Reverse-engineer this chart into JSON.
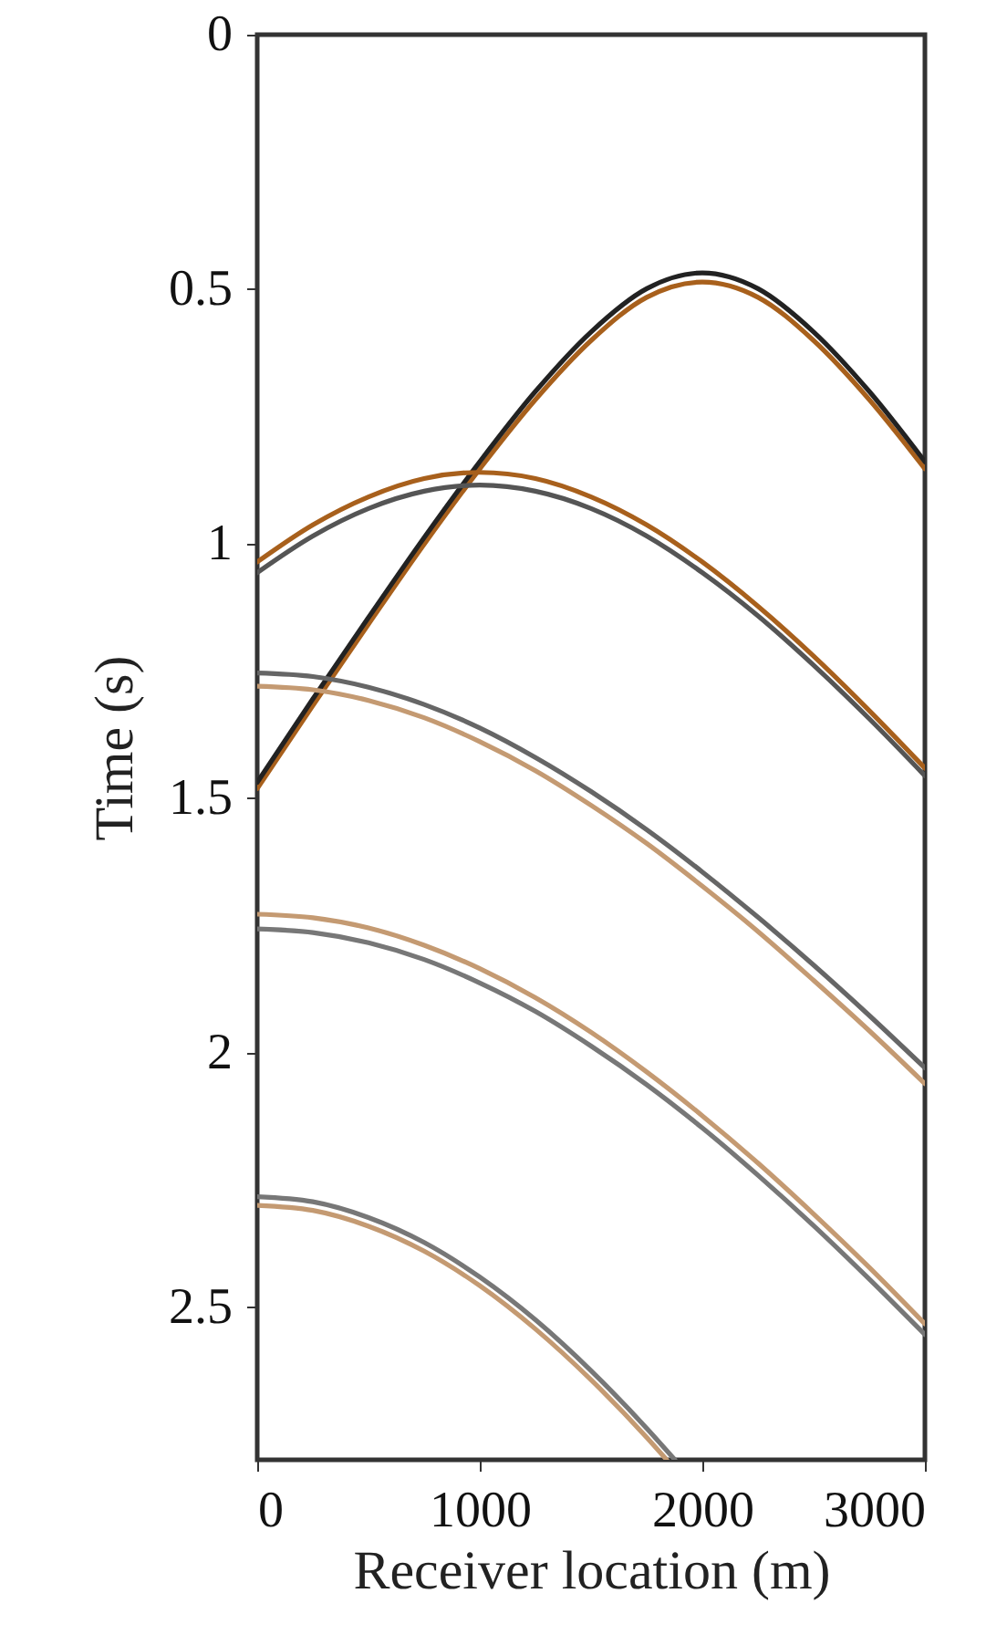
{
  "chart_data": {
    "type": "line",
    "xlabel": "Receiver location (m)",
    "ylabel": "Time (s)",
    "xlim": [
      0,
      3000
    ],
    "ylim": [
      2.8,
      0
    ],
    "xticks": [
      0,
      1000,
      2000,
      3000
    ],
    "yticks": [
      0,
      0.5,
      1,
      1.5,
      2,
      2.5
    ],
    "line_style": "solid",
    "series": [
      {
        "color": "#a8601c",
        "x": [
          0,
          250,
          500,
          750,
          1000,
          1250,
          1500,
          1750,
          2000,
          2250,
          2500,
          2750,
          3000
        ],
        "values": [
          1.481,
          1.318,
          1.158,
          1.001,
          0.853,
          0.717,
          0.601,
          0.516,
          0.486,
          0.516,
          0.601,
          0.717,
          0.853
        ]
      },
      {
        "color": "#222222",
        "x": [
          0,
          250,
          500,
          750,
          1000,
          1250,
          1500,
          1750,
          2000,
          2250,
          2500,
          2750,
          3000
        ],
        "values": [
          1.469,
          1.305,
          1.145,
          0.988,
          0.839,
          0.701,
          0.584,
          0.499,
          0.468,
          0.499,
          0.584,
          0.701,
          0.839
        ]
      },
      {
        "color": "#a8601c",
        "x": [
          0,
          250,
          500,
          750,
          1000,
          1250,
          1500,
          1750,
          2000,
          2250,
          2500,
          2750,
          3000
        ],
        "values": [
          1.036,
          0.963,
          0.908,
          0.872,
          0.86,
          0.872,
          0.908,
          0.963,
          1.036,
          1.123,
          1.221,
          1.328,
          1.441
        ]
      },
      {
        "color": "#555555",
        "x": [
          0,
          250,
          500,
          750,
          1000,
          1250,
          1500,
          1750,
          2000,
          2250,
          2500,
          2750,
          3000
        ],
        "values": [
          1.057,
          0.985,
          0.931,
          0.897,
          0.885,
          0.897,
          0.931,
          0.985,
          1.057,
          1.142,
          1.239,
          1.344,
          1.456
        ]
      },
      {
        "color": "#c49a72",
        "x": [
          0,
          250,
          500,
          750,
          1000,
          1250,
          1500,
          1750,
          2000,
          2250,
          2500,
          2750,
          3000
        ],
        "values": [
          1.28,
          1.287,
          1.308,
          1.342,
          1.389,
          1.446,
          1.514,
          1.589,
          1.673,
          1.762,
          1.858,
          1.957,
          2.061
        ]
      },
      {
        "color": "#666666",
        "x": [
          0,
          250,
          500,
          750,
          1000,
          1250,
          1500,
          1750,
          2000,
          2250,
          2500,
          2750,
          3000
        ],
        "values": [
          1.254,
          1.261,
          1.282,
          1.316,
          1.362,
          1.42,
          1.487,
          1.562,
          1.645,
          1.734,
          1.828,
          1.927,
          2.03
        ]
      },
      {
        "color": "#c49a72",
        "x": [
          0,
          250,
          500,
          750,
          1000,
          1250,
          1500,
          1750,
          2000,
          2250,
          2500,
          2750,
          3000
        ],
        "values": [
          1.728,
          1.735,
          1.755,
          1.789,
          1.835,
          1.892,
          1.96,
          2.038,
          2.124,
          2.217,
          2.317,
          2.422,
          2.533
        ]
      },
      {
        "color": "#777777",
        "x": [
          0,
          250,
          500,
          750,
          1000,
          1250,
          1500,
          1750,
          2000,
          2250,
          2500,
          2750,
          3000
        ],
        "values": [
          1.757,
          1.764,
          1.784,
          1.817,
          1.863,
          1.919,
          1.987,
          2.063,
          2.148,
          2.241,
          2.34,
          2.445,
          2.554
        ]
      },
      {
        "color": "#c49a72",
        "x": [
          0,
          250,
          500,
          750,
          1000,
          1250,
          1500,
          1750,
          1840
        ],
        "values": [
          2.3,
          2.31,
          2.341,
          2.39,
          2.458,
          2.543,
          2.643,
          2.756,
          2.8
        ]
      },
      {
        "color": "#777777",
        "x": [
          0,
          250,
          500,
          750,
          1000,
          1250,
          1500,
          1750,
          1877
        ],
        "values": [
          2.283,
          2.293,
          2.324,
          2.373,
          2.441,
          2.525,
          2.625,
          2.738,
          2.8
        ]
      }
    ]
  }
}
